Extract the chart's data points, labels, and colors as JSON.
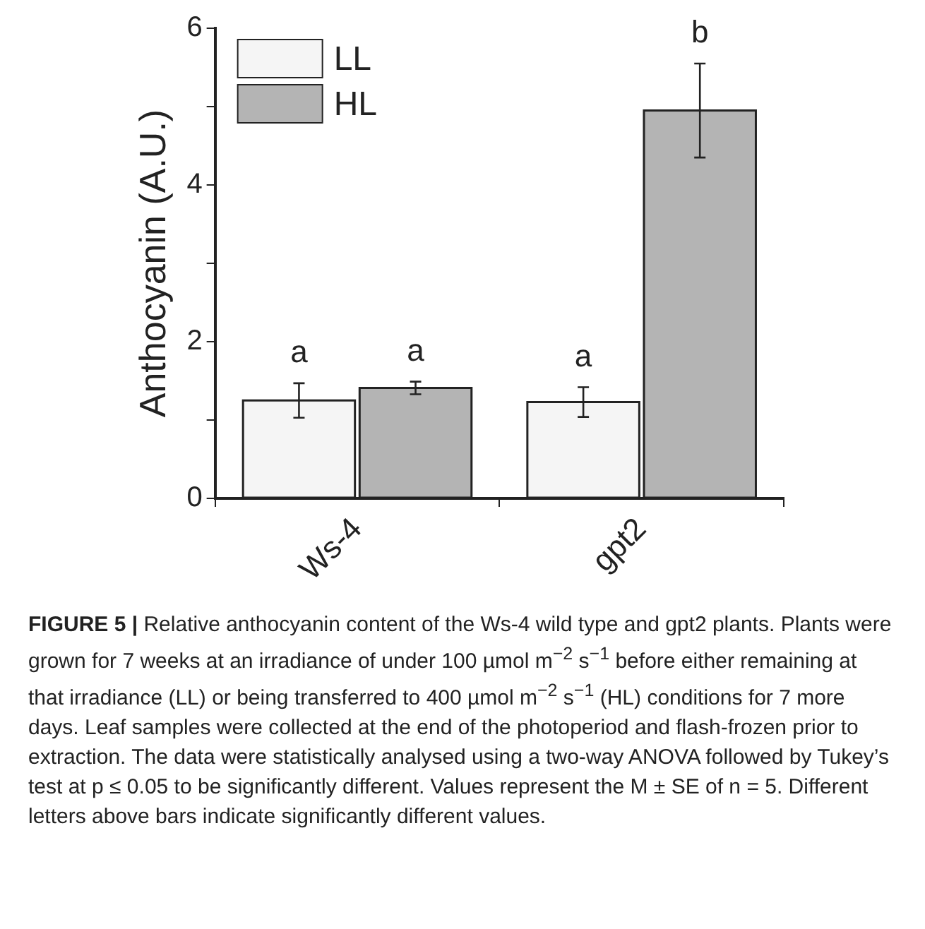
{
  "chart_data": {
    "type": "bar",
    "ylabel": "Anthocyanin (A.U.)",
    "categories": [
      "Ws-4",
      "gpt2"
    ],
    "series": [
      {
        "name": "LL",
        "color": "#f5f5f5",
        "values": [
          1.25,
          1.23
        ],
        "errors": [
          0.22,
          0.19
        ]
      },
      {
        "name": "HL",
        "color": "#b4b4b4",
        "values": [
          1.41,
          4.95
        ],
        "errors": [
          0.08,
          0.6
        ]
      }
    ],
    "ylim": [
      0,
      6
    ],
    "yticks": [
      0,
      {
        "value": 1,
        "label": null
      },
      2,
      {
        "value": 3,
        "label": null
      },
      4,
      {
        "value": 5,
        "label": null
      },
      6
    ],
    "grid": false,
    "legend": "top left",
    "annotations": [
      "a",
      "a",
      "a",
      "b",
      "FIGURE 5 | Relative anthocyanin content of the Ws-4 wild type and gpt2 plants. Plants were grown for 7 weeks at an irradiance of under 100 µmol m$^{−2}$ s$^{−1}$ before either remaining at that irradiance (LL) or being transferred to 400 µmol m$^{−2}$ s$^{−1}$ (HL) conditions for 7 more days. Leaf samples were collected at the end of the photoperiod and flash-frozen prior to extraction. The data were statistically analysed using a two-way ANOVA followed by Tukey’s test at p ≤ 0.05 to be significantly different. Values represent the M ± SE of n = 5. Different letters above bars indicate significantly different values."
    ]
  }
}
